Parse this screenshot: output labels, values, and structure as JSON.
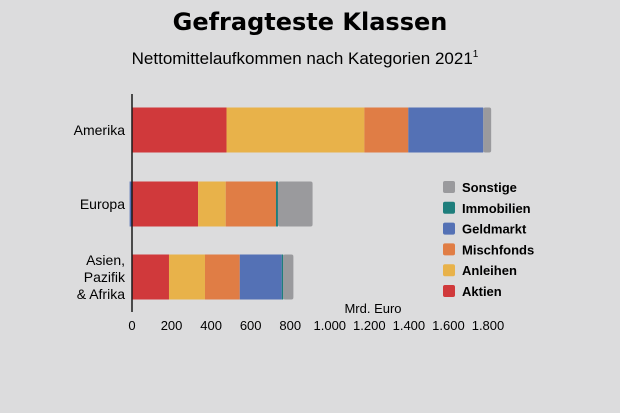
{
  "chart_data": {
    "type": "bar",
    "orientation": "horizontal",
    "stacked": true,
    "title": "Gefragteste Klassen",
    "subtitle": "Nettomittelaufkommen nach Kategorien 2021",
    "subtitle_footnote": "1",
    "unit_label": "Mrd. Euro",
    "categories": [
      [
        "Amerika"
      ],
      [
        "Europa"
      ],
      [
        "Asien,",
        "Pazifik",
        "& Afrika"
      ]
    ],
    "xlim": [
      0,
      1800
    ],
    "x_ticks": [
      0,
      200,
      400,
      600,
      800,
      1000,
      1200,
      1400,
      1600,
      1800
    ],
    "x_tick_labels": [
      "0",
      "200",
      "400",
      "600",
      "800",
      "1.000",
      "1.200",
      "1.400",
      "1.600",
      "1.800"
    ],
    "legend_position": "right",
    "series": [
      {
        "name": "Aktien",
        "color": "#d0393b",
        "values": [
          478,
          334,
          187
        ]
      },
      {
        "name": "Anleihen",
        "color": "#e8b24a",
        "values": [
          697,
          140,
          182
        ]
      },
      {
        "name": "Mischfonds",
        "color": "#e07d45",
        "values": [
          222,
          254,
          176
        ]
      },
      {
        "name": "Geldmarkt",
        "color": "#5471b5",
        "values": [
          379,
          -12,
          212
        ]
      },
      {
        "name": "Immobilien",
        "color": "#1e7e7c",
        "values": [
          0,
          10,
          7
        ]
      },
      {
        "name": "Sonstige",
        "color": "#9a9a9d",
        "values": [
          40,
          175,
          52
        ]
      }
    ],
    "legend_order": [
      "Sonstige",
      "Immobilien",
      "Geldmarkt",
      "Mischfonds",
      "Anleihen",
      "Aktien"
    ]
  }
}
